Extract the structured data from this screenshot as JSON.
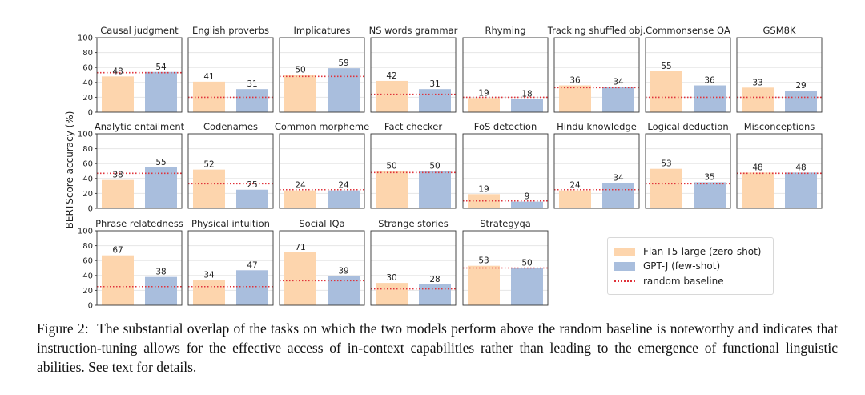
{
  "chart_data": {
    "type": "bar",
    "ylabel": "BERTScore accuracy (%)",
    "ylim": [
      0,
      100
    ],
    "yticks": [
      0,
      20,
      40,
      60,
      80,
      100
    ],
    "grid": true,
    "legend_position": "bottom-right",
    "series": [
      {
        "name": "Flan-T5-large (zero-shot)",
        "color": "#fdd5ad"
      },
      {
        "name": "GPT-J (few-shot)",
        "color": "#a9bedd"
      }
    ],
    "baseline_name": "random baseline",
    "baseline_color": "#e0323a",
    "panels": [
      {
        "title": "Causal judgment",
        "values": [
          48,
          54
        ],
        "baseline": 53
      },
      {
        "title": "English proverbs",
        "values": [
          41,
          31
        ],
        "baseline": 20
      },
      {
        "title": "Implicatures",
        "values": [
          50,
          59
        ],
        "baseline": 48
      },
      {
        "title": "NS words grammar",
        "values": [
          42,
          31
        ],
        "baseline": 24
      },
      {
        "title": "Rhyming",
        "values": [
          19,
          18
        ],
        "baseline": 20
      },
      {
        "title": "Tracking shuffled obj.",
        "values": [
          36,
          34
        ],
        "baseline": 33
      },
      {
        "title": "Commonsense QA",
        "values": [
          55,
          36
        ],
        "baseline": 20
      },
      {
        "title": "GSM8K",
        "values": [
          33,
          29
        ],
        "baseline": 20
      },
      {
        "title": "Analytic entailment",
        "values": [
          38,
          55
        ],
        "baseline": 47
      },
      {
        "title": "Codenames",
        "values": [
          52,
          25
        ],
        "baseline": 33
      },
      {
        "title": "Common morpheme",
        "values": [
          24,
          24
        ],
        "baseline": 25
      },
      {
        "title": "Fact checker",
        "values": [
          50,
          50
        ],
        "baseline": 48
      },
      {
        "title": "FoS detection",
        "values": [
          19,
          9
        ],
        "baseline": 10
      },
      {
        "title": "Hindu knowledge",
        "values": [
          24,
          34
        ],
        "baseline": 25
      },
      {
        "title": "Logical deduction",
        "values": [
          53,
          35
        ],
        "baseline": 33
      },
      {
        "title": "Misconceptions",
        "values": [
          48,
          48
        ],
        "baseline": 47
      },
      {
        "title": "Phrase relatedness",
        "values": [
          67,
          38
        ],
        "baseline": 25
      },
      {
        "title": "Physical intuition",
        "values": [
          34,
          47
        ],
        "baseline": 25
      },
      {
        "title": "Social IQa",
        "values": [
          71,
          39
        ],
        "baseline": 33
      },
      {
        "title": "Strange stories",
        "values": [
          30,
          28
        ],
        "baseline": 22
      },
      {
        "title": "Strategyqa",
        "values": [
          53,
          50
        ],
        "baseline": 50
      }
    ]
  },
  "caption": "Figure 2:  The substantial overlap of the tasks on which the two models perform above the random baseline is noteworthy and indicates that instruction-tuning allows for the effective access of in-context capabilities rather than leading to the emergence of functional linguistic abilities. See text for details."
}
